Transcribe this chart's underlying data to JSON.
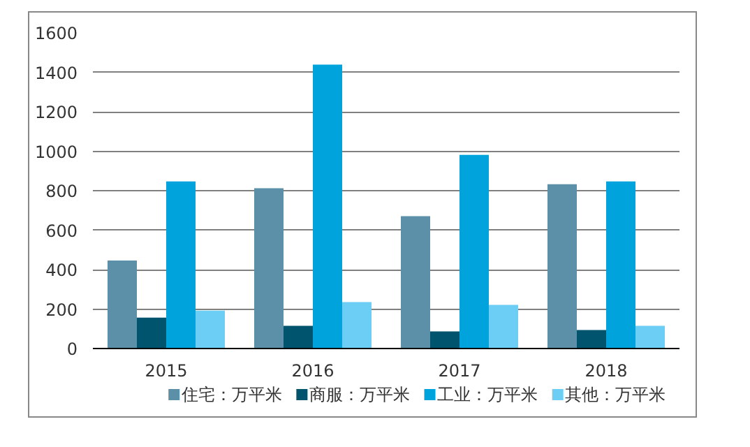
{
  "chart_data": {
    "type": "bar",
    "categories": [
      "2015",
      "2016",
      "2017",
      "2018"
    ],
    "series": [
      {
        "name": "住宅：万平米",
        "color": "#5b90a8",
        "values": [
          446,
          812,
          671,
          833
        ]
      },
      {
        "name": "商服：万平米",
        "color": "#00546e",
        "values": [
          157,
          115,
          87,
          94
        ]
      },
      {
        "name": "工业：万平米",
        "color": "#00a3dc",
        "values": [
          847,
          1439,
          981,
          847
        ]
      },
      {
        "name": "其他：万平米",
        "color": "#6dcef5",
        "values": [
          192,
          235,
          221,
          115
        ]
      }
    ],
    "ylim": [
      0,
      1600
    ],
    "yticks": [
      0,
      200,
      400,
      600,
      800,
      1000,
      1200,
      1400,
      1600
    ],
    "grid": "y",
    "legend": "bottom"
  }
}
